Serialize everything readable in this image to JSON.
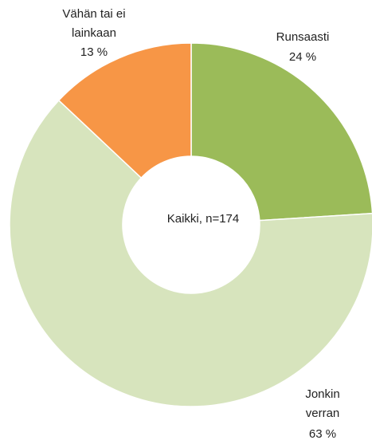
{
  "chart_data": {
    "type": "donut",
    "categories": [
      "Runsaasti",
      "Jonkin verran",
      "Vähän tai ei lainkaan"
    ],
    "values": [
      24,
      63,
      13
    ],
    "value_labels": [
      "24 %",
      "63 %",
      "13 %"
    ],
    "colors": [
      "#9bbb59",
      "#d7e4bd",
      "#f79646"
    ],
    "center_text": "Kaikki, n=174"
  }
}
